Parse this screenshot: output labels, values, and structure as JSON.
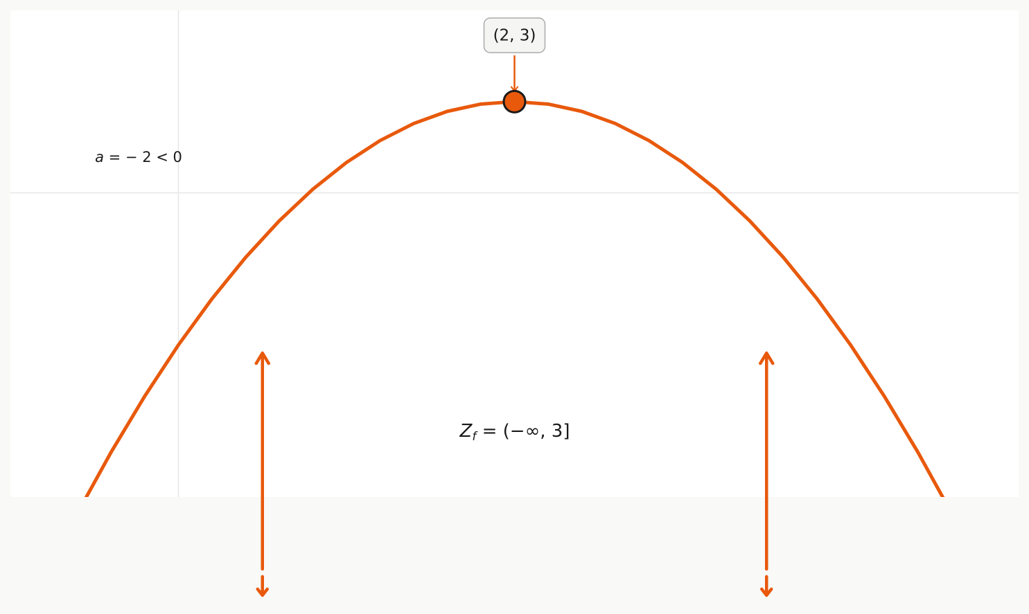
{
  "chart_data": {
    "type": "line",
    "x": [
      -0.6,
      -0.4,
      -0.2,
      0,
      0.2,
      0.4,
      0.6,
      0.8,
      1.0,
      1.2,
      1.4,
      1.6,
      1.8,
      2.0,
      2.2,
      2.4,
      2.6,
      2.8,
      3.0,
      3.2,
      3.4,
      3.6,
      3.8,
      4.0,
      4.2,
      4.4,
      4.6
    ],
    "series": [
      {
        "color": "#e8590c",
        "values": [
          -10.52,
          -8.52,
          -6.68,
          -5,
          -3.48,
          -2.12,
          -0.92,
          0.12,
          1,
          1.72,
          2.28,
          2.68,
          2.92,
          3,
          2.92,
          2.68,
          2.28,
          1.72,
          1,
          0.12,
          -0.92,
          -2.12,
          -3.48,
          -5,
          -6.68,
          -8.52,
          -10.52
        ]
      }
    ],
    "xlim": [
      -1,
      5
    ],
    "ylim": [
      -10,
      6
    ],
    "xticks": [
      0
    ],
    "yticks": [
      0
    ],
    "grid": true,
    "vertex": {
      "x": 2,
      "y": 3,
      "label": "(2, 3)",
      "color": "#e8590c"
    },
    "arrow_x": [
      0.5,
      3.5
    ],
    "a_label": {
      "symbol": "a",
      "text": " = − 2 < 0"
    },
    "range_label": {
      "symbol": "Z",
      "subscript": "f",
      "text": " = (−∞, 3]"
    }
  }
}
